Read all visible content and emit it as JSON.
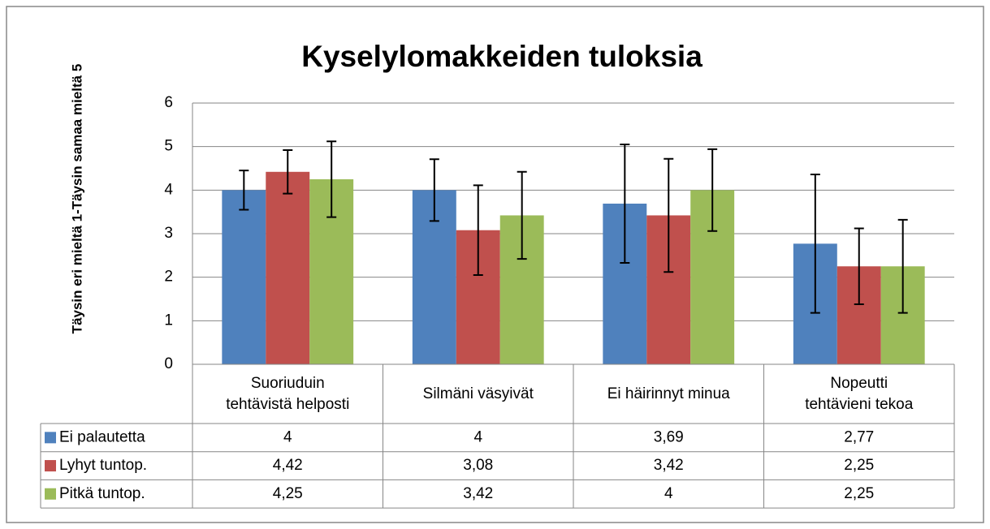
{
  "chart_data": {
    "type": "bar",
    "title": "Kyselylomakkeiden tuloksia",
    "y_label": "Täysin eri mieltä 1-Täysin samaa mieltä 5",
    "categories": [
      "Suoriuduin\ntehtävistä helposti",
      "Silmäni väsyivät",
      "Ei häirinnyt minua",
      "Nopeutti\ntehtävieni tekoa"
    ],
    "series": [
      {
        "name": "Ei palautetta",
        "color": "#4f81bd",
        "values": [
          4,
          4,
          3.69,
          2.77
        ],
        "value_labels": [
          "4",
          "4",
          "3,69",
          "2,77"
        ],
        "errors": [
          0.45,
          0.71,
          1.36,
          1.59
        ]
      },
      {
        "name": "Lyhyt tuntop.",
        "color": "#c0504d",
        "values": [
          4.42,
          3.08,
          3.42,
          2.25
        ],
        "value_labels": [
          "4,42",
          "3,08",
          "3,42",
          "2,25"
        ],
        "errors": [
          0.5,
          1.03,
          1.3,
          0.87
        ]
      },
      {
        "name": "Pitkä tuntop.",
        "color": "#9bbb59",
        "values": [
          4.25,
          3.42,
          4,
          2.25
        ],
        "value_labels": [
          "4,25",
          "3,42",
          "4",
          "2,25"
        ],
        "errors": [
          0.87,
          1.0,
          0.94,
          1.07
        ]
      }
    ],
    "ylim": [
      0,
      6
    ],
    "yticks": [
      0,
      1,
      2,
      3,
      4,
      5,
      6
    ],
    "grid": true,
    "data_table": true
  }
}
